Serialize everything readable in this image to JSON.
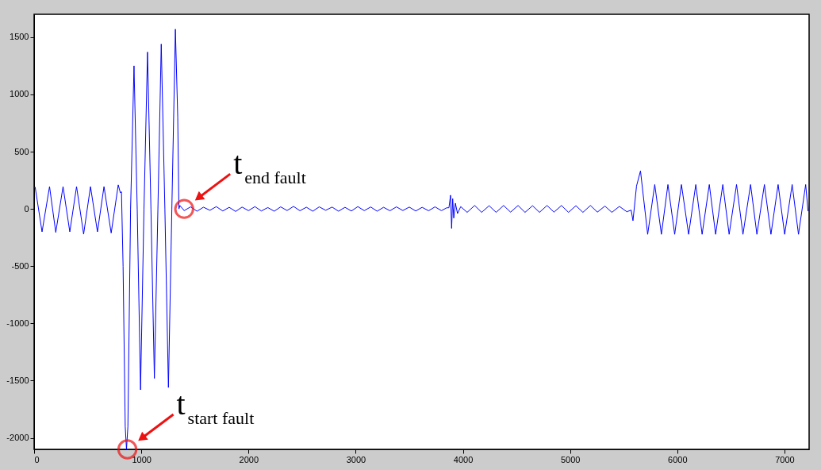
{
  "chart_data": {
    "type": "line",
    "x": [
      0,
      10,
      74,
      144,
      202,
      270,
      333,
      396,
      462,
      526,
      591,
      652,
      719,
      785,
      805,
      815,
      830,
      850,
      862,
      875,
      900,
      932,
      962,
      993,
      1025,
      1058,
      1090,
      1122,
      1155,
      1186,
      1220,
      1253,
      1285,
      1318,
      1340,
      1351,
      1360,
      1400,
      1460,
      1520,
      1580,
      1640,
      1700,
      1760,
      1820,
      1880,
      1940,
      2000,
      2060,
      2120,
      2180,
      2240,
      2300,
      2360,
      2420,
      2480,
      2540,
      2600,
      2660,
      2720,
      2780,
      2840,
      2900,
      2960,
      3020,
      3080,
      3140,
      3200,
      3260,
      3320,
      3380,
      3440,
      3500,
      3560,
      3620,
      3680,
      3740,
      3800,
      3850,
      3870,
      3885,
      3895,
      3905,
      3915,
      3930,
      3950,
      3980,
      4040,
      4110,
      4175,
      4245,
      4310,
      4380,
      4445,
      4515,
      4580,
      4650,
      4715,
      4785,
      4850,
      4920,
      4985,
      5055,
      5120,
      5190,
      5255,
      5325,
      5390,
      5460,
      5530,
      5570,
      5587,
      5620,
      5657,
      5724,
      5790,
      5852,
      5913,
      5976,
      6039,
      6106,
      6173,
      6232,
      6299,
      6358,
      6425,
      6484,
      6553,
      6613,
      6684,
      6743,
      6813,
      6874,
      6941,
      7002,
      7072,
      7131,
      7198,
      7220
    ],
    "series": [
      {
        "color": "#0000ff",
        "values": [
          180,
          190,
          -200,
          195,
          -205,
          195,
          -200,
          195,
          -220,
          195,
          -200,
          195,
          -210,
          210,
          140,
          150,
          -500,
          -1900,
          -2100,
          -1900,
          0,
          1250,
          0,
          -1580,
          0,
          1370,
          0,
          -1480,
          0,
          1440,
          0,
          -1560,
          0,
          1570,
          800,
          0,
          30,
          -15,
          18,
          -20,
          15,
          -12,
          20,
          -18,
          14,
          -22,
          16,
          -15,
          20,
          -18,
          12,
          -20,
          18,
          -14,
          22,
          -16,
          15,
          -20,
          18,
          -12,
          16,
          -20,
          14,
          -18,
          20,
          -15,
          17,
          -20,
          14,
          -16,
          18,
          -14,
          16,
          -18,
          14,
          -16,
          18,
          -15,
          10,
          10,
          120,
          -170,
          90,
          -80,
          50,
          -40,
          20,
          -30,
          30,
          -30,
          28,
          -30,
          30,
          -28,
          30,
          -30,
          28,
          -30,
          30,
          -28,
          30,
          -30,
          28,
          -30,
          30,
          -28,
          25,
          -30,
          22,
          -25,
          -10,
          -103,
          200,
          332,
          -222,
          213,
          -222,
          213,
          -222,
          213,
          -222,
          213,
          -222,
          213,
          -222,
          213,
          -222,
          213,
          -222,
          213,
          -222,
          213,
          -222,
          213,
          -222,
          213,
          -222,
          213,
          -20
        ]
      }
    ],
    "xlim": [
      0,
      7230
    ],
    "ylim": [
      -2100,
      1700
    ],
    "xticks": [
      0,
      1000,
      2000,
      3000,
      4000,
      5000,
      6000,
      7000
    ],
    "yticks": [
      -2000,
      -1500,
      -1000,
      -500,
      0,
      500,
      1000,
      1500
    ],
    "grid": false,
    "marker": "none",
    "line_style": "solid",
    "annotations": [
      {
        "text": "t$_{end  fault}$",
        "x": 1400,
        "y": 0
      },
      {
        "text": "t$_{start  fault}$",
        "x": 870,
        "y": -2100
      }
    ]
  }
}
